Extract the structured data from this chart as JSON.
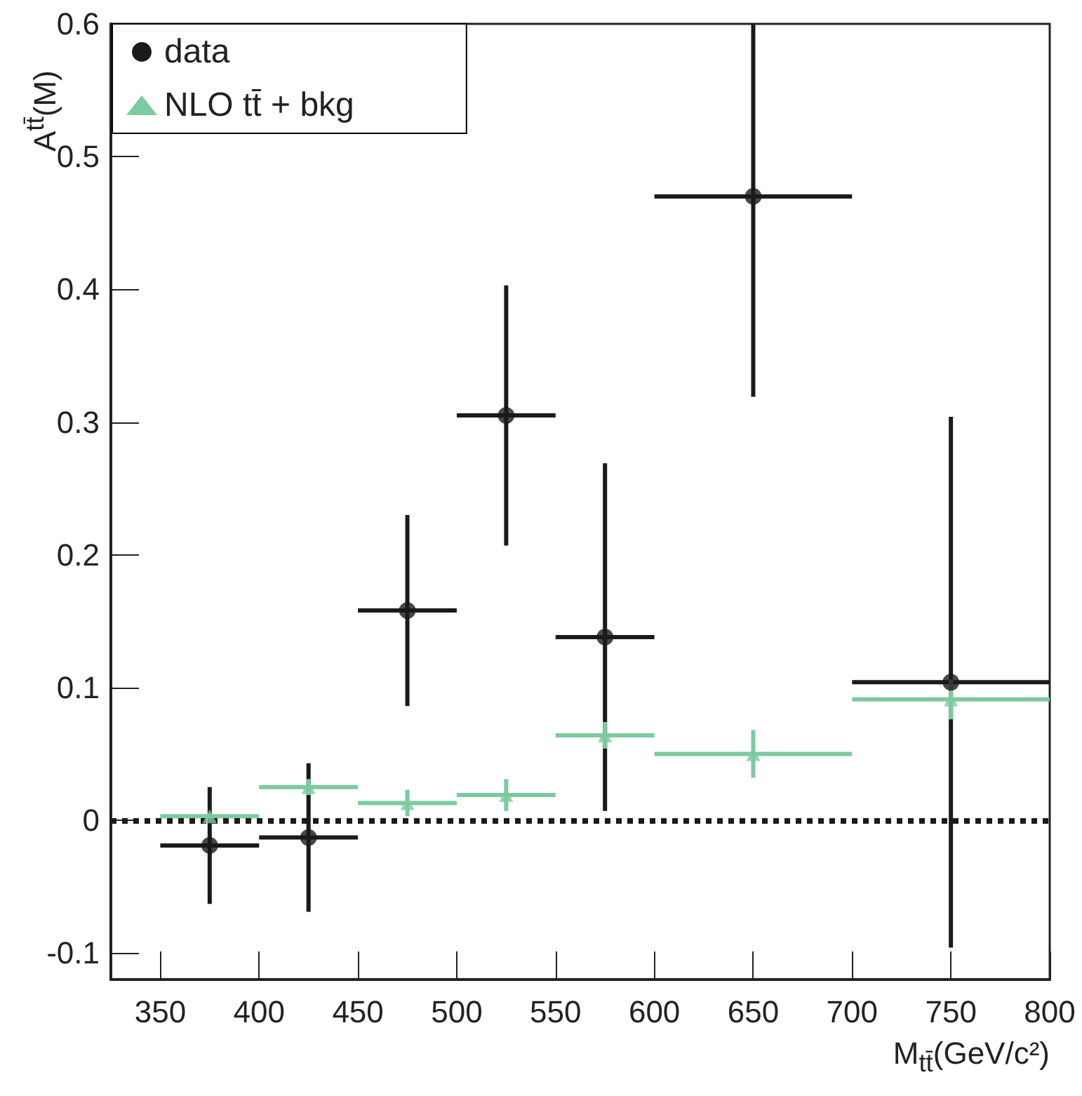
{
  "chart_data": {
    "type": "scatter",
    "xlabel": "M$_{tt̄}$(GeV/c²)",
    "ylabel": "A$^{tt̄}$(M)",
    "x": [
      375,
      425,
      475,
      525,
      575,
      650,
      750
    ],
    "series": [
      {
        "name": "data",
        "color": "#1a1a1a",
        "marker": "circle",
        "values": [
          -0.019,
          -0.013,
          0.158,
          0.305,
          0.138,
          0.47,
          0.104
        ],
        "errors": [
          0.044,
          0.056,
          0.072,
          0.098,
          0.131,
          [
            0.319,
            0.6
          ],
          0.2
        ],
        "xerrors": [
          25,
          25,
          25,
          25,
          25,
          50,
          50
        ]
      },
      {
        "name": "NLO tt̄ + bkg",
        "color": "#7ccaa0",
        "marker": "triangle",
        "values": [
          0.003,
          0.025,
          0.013,
          0.019,
          0.064,
          0.05,
          0.091
        ],
        "errors": [
          null,
          0.006,
          0.01,
          0.012,
          0.01,
          0.018,
          0.015
        ],
        "xerrors": [
          25,
          25,
          25,
          25,
          25,
          50,
          50
        ]
      }
    ],
    "xlim": [
      325,
      800
    ],
    "xticks": [
      350,
      400,
      450,
      500,
      550,
      600,
      650,
      700,
      750,
      800
    ],
    "ylim": [
      -0.12,
      0.6
    ],
    "yticks": [
      -0.1,
      0,
      0.1,
      0.2,
      0.3,
      0.4,
      0.5,
      0.6
    ],
    "ref_lines": [
      {
        "axis": "y",
        "value": 0,
        "label": null,
        "color": "#1a1a1a",
        "line_style": "dotted"
      }
    ],
    "grid": false,
    "legend": "top left"
  }
}
